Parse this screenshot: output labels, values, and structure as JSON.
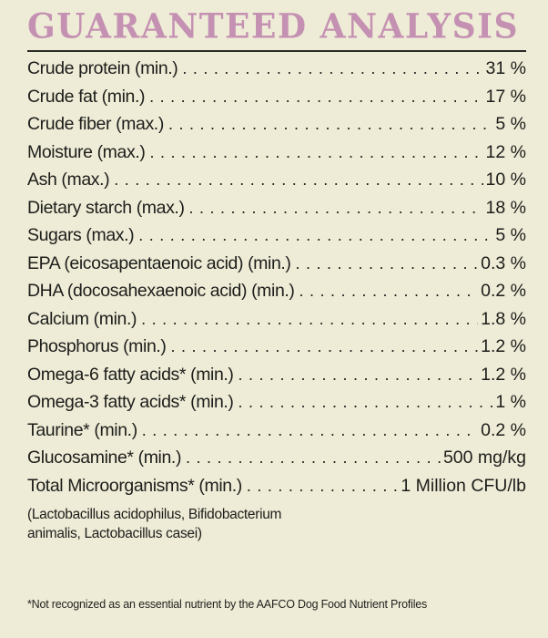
{
  "header": {
    "title": "GUARANTEED ANALYSIS"
  },
  "rows": [
    {
      "label": "Crude protein (min.)",
      "value": "31 %"
    },
    {
      "label": "Crude fat (min.)",
      "value": "17 %"
    },
    {
      "label": "Crude fiber (max.)",
      "value": "5 %"
    },
    {
      "label": "Moisture (max.)",
      "value": "12 %"
    },
    {
      "label": "Ash (max.)",
      "value": "10 %"
    },
    {
      "label": "Dietary starch (max.)",
      "value": "18 %"
    },
    {
      "label": "Sugars (max.)",
      "value": "5 %"
    },
    {
      "label": "EPA (eicosapentaenoic acid) (min.)",
      "value": "0.3 %"
    },
    {
      "label": "DHA (docosahexaenoic acid) (min.)",
      "value": "0.2 %"
    },
    {
      "label": "Calcium (min.)",
      "value": "1.8 %"
    },
    {
      "label": "Phosphorus (min.)",
      "value": "1.2 %"
    },
    {
      "label": "Omega-6 fatty acids* (min.)",
      "value": "1.2 %"
    },
    {
      "label": "Omega-3 fatty acids* (min.)",
      "value": "1 %"
    },
    {
      "label": "Taurine* (min.)",
      "value": "0.2 %"
    },
    {
      "label": "Glucosamine* (min.)",
      "value": "500 mg/kg"
    },
    {
      "label": "Total Microorganisms* (min.)",
      "value": "1 Million CFU/lb"
    }
  ],
  "microorganisms_note": {
    "line1": "(Lactobacillus acidophilus, Bifidobacterium",
    "line2": "animalis, Lactobacillus casei)"
  },
  "footnote": "*Not recognized as an essential nutrient by the AAFCO Dog Food Nutrient Profiles",
  "colors": {
    "background": "#eeecd6",
    "text": "#1d1d1b",
    "title": "#c491b2",
    "rule": "#2b2b28"
  }
}
